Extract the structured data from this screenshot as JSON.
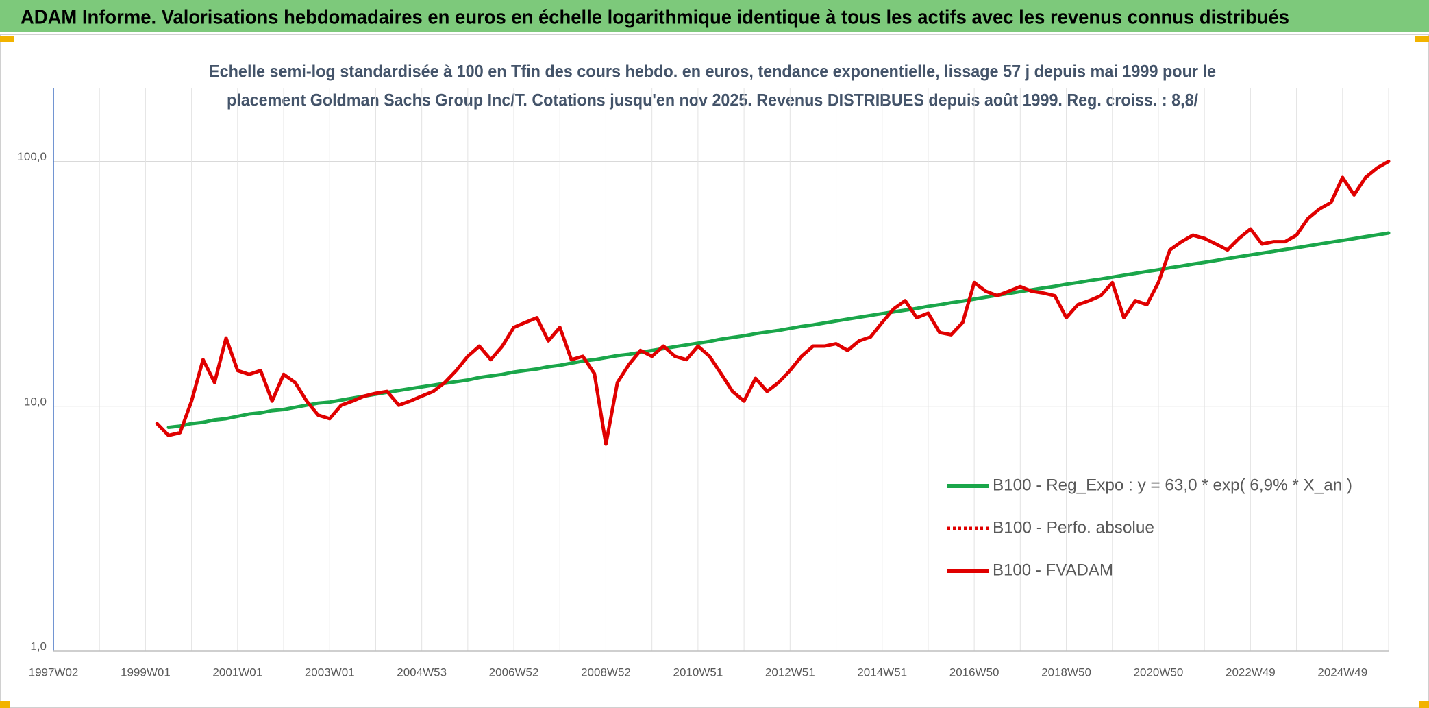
{
  "chart_data": {
    "type": "line",
    "title": "ADAM Informe. Valorisations hebdomadaires en euros en échelle logarithmique identique à tous les actifs avec les revenus connus distribués",
    "subtitle": [
      "Echelle semi-log standardisée à 100 en Tfin des cours hebdo. en euros, tendance exponentielle, lissage 57 j depuis mai 1999 pour le",
      "placement Goldman Sachs Group Inc/T. Cotations jusqu'en nov 2025. Revenus DISTRIBUES depuis août 1999. Reg. croiss. : 8,8/"
    ],
    "categories": [
      "1997W02",
      null,
      null,
      null,
      null,
      null,
      null,
      null,
      "1999W01",
      null,
      null,
      null,
      null,
      null,
      null,
      null,
      "2001W01",
      null,
      null,
      null,
      null,
      null,
      null,
      null,
      "2003W01",
      null,
      null,
      null,
      null,
      null,
      null,
      null,
      "2004W53",
      null,
      null,
      null,
      null,
      null,
      null,
      null,
      "2006W52",
      null,
      null,
      null,
      null,
      null,
      null,
      null,
      "2008W52",
      null,
      null,
      null,
      null,
      null,
      null,
      null,
      "2010W51",
      null,
      null,
      null,
      null,
      null,
      null,
      null,
      "2012W51",
      null,
      null,
      null,
      null,
      null,
      null,
      null,
      "2014W51",
      null,
      null,
      null,
      null,
      null,
      null,
      null,
      "2016W50",
      null,
      null,
      null,
      null,
      null,
      null,
      null,
      "2018W50",
      null,
      null,
      null,
      null,
      null,
      null,
      null,
      "2020W50",
      null,
      null,
      null,
      null,
      null,
      null,
      null,
      "2022W49",
      null,
      null,
      null,
      null,
      null,
      null,
      null,
      "2024W49",
      null,
      null,
      null,
      null
    ],
    "log_scale": true,
    "ylim": [
      1,
      200
    ],
    "yticks": [
      {
        "value": 1,
        "label": "1,0"
      },
      {
        "value": 10,
        "label": "10,0"
      },
      {
        "value": 100,
        "label": "100,0"
      }
    ],
    "grid": true,
    "legend": "center-right",
    "series": [
      {
        "name": "B100 - Reg_Expo : y = 63,0 * exp( 6,9% *  X_an )",
        "color": "#1aa64a",
        "style": "solid",
        "values": [
          null,
          null,
          null,
          null,
          null,
          null,
          null,
          null,
          null,
          null,
          8.2,
          8.3,
          8.5,
          8.6,
          8.8,
          8.9,
          9.1,
          9.3,
          9.4,
          9.6,
          9.7,
          9.9,
          10.1,
          10.3,
          10.4,
          10.6,
          10.8,
          11,
          11.2,
          11.4,
          11.6,
          11.8,
          12,
          12.2,
          12.4,
          12.6,
          12.8,
          13.1,
          13.3,
          13.5,
          13.8,
          14,
          14.2,
          14.5,
          14.7,
          15,
          15.3,
          15.5,
          15.8,
          16.1,
          16.3,
          16.6,
          16.9,
          17.2,
          17.5,
          17.8,
          18.1,
          18.4,
          18.8,
          19.1,
          19.4,
          19.8,
          20.1,
          20.4,
          20.8,
          21.2,
          21.5,
          21.9,
          22.3,
          22.7,
          23.1,
          23.5,
          23.9,
          24.3,
          24.7,
          25.1,
          25.6,
          26,
          26.5,
          26.9,
          27.4,
          27.9,
          28.4,
          28.9,
          29.4,
          29.9,
          30.4,
          30.9,
          31.5,
          32,
          32.6,
          33.1,
          33.7,
          34.3,
          34.9,
          35.5,
          36.1,
          36.8,
          37.4,
          38.1,
          38.7,
          39.4,
          40.1,
          40.8,
          41.5,
          42.2,
          42.9,
          43.7,
          44.4,
          45.2,
          46,
          46.8,
          47.6,
          48.4,
          49.3,
          50.1,
          51
        ]
      },
      {
        "name": "B100 - Perfo. absolue",
        "color": "#e00000",
        "style": "dotted",
        "values": [
          null,
          null,
          null,
          null,
          null,
          null,
          null,
          null,
          null,
          8.5,
          7.6,
          7.8,
          10.5,
          15.5,
          12.5,
          19,
          14,
          13.5,
          14,
          10.5,
          13.5,
          12.5,
          10.5,
          9.2,
          8.9,
          10.1,
          10.5,
          11,
          11.3,
          11.5,
          10.1,
          10.5,
          11,
          11.5,
          12.5,
          14,
          16,
          17.6,
          15.5,
          17.6,
          21,
          22,
          23,
          18.5,
          21,
          15.5,
          16,
          13.6,
          7,
          12.5,
          14.8,
          16.9,
          16,
          17.6,
          16,
          15.5,
          17.6,
          16,
          13.6,
          11.5,
          10.5,
          13,
          11.5,
          12.5,
          14,
          16,
          17.6,
          17.6,
          18,
          16.9,
          18.5,
          19.2,
          22,
          25,
          27,
          23,
          24,
          20,
          19.6,
          22,
          32,
          29.5,
          28.3,
          29.5,
          30.8,
          29.5,
          29,
          28.3,
          23,
          26,
          27,
          28.3,
          32,
          23,
          27,
          26,
          32,
          43.5,
          47,
          50,
          48.5,
          46,
          43.5,
          48.5,
          53,
          46,
          47,
          47,
          50,
          58.5,
          64,
          68,
          86,
          73,
          86,
          94,
          100
        ]
      },
      {
        "name": "B100 - FVADAM",
        "color": "#e00000",
        "style": "solid",
        "values": [
          null,
          null,
          null,
          null,
          null,
          null,
          null,
          null,
          null,
          8.5,
          7.6,
          7.8,
          10.5,
          15.5,
          12.5,
          19,
          14,
          13.5,
          14,
          10.5,
          13.5,
          12.5,
          10.5,
          9.2,
          8.9,
          10.1,
          10.5,
          11,
          11.3,
          11.5,
          10.1,
          10.5,
          11,
          11.5,
          12.5,
          14,
          16,
          17.6,
          15.5,
          17.6,
          21,
          22,
          23,
          18.5,
          21,
          15.5,
          16,
          13.6,
          7,
          12.5,
          14.8,
          16.9,
          16,
          17.6,
          16,
          15.5,
          17.6,
          16,
          13.6,
          11.5,
          10.5,
          13,
          11.5,
          12.5,
          14,
          16,
          17.6,
          17.6,
          18,
          16.9,
          18.5,
          19.2,
          22,
          25,
          27,
          23,
          24,
          20,
          19.6,
          22,
          32,
          29.5,
          28.3,
          29.5,
          30.8,
          29.5,
          29,
          28.3,
          23,
          26,
          27,
          28.3,
          32,
          23,
          27,
          26,
          32,
          43.5,
          47,
          50,
          48.5,
          46,
          43.5,
          48.5,
          53,
          46,
          47,
          47,
          50,
          58.5,
          64,
          68,
          86,
          73,
          86,
          94,
          100
        ]
      }
    ]
  }
}
